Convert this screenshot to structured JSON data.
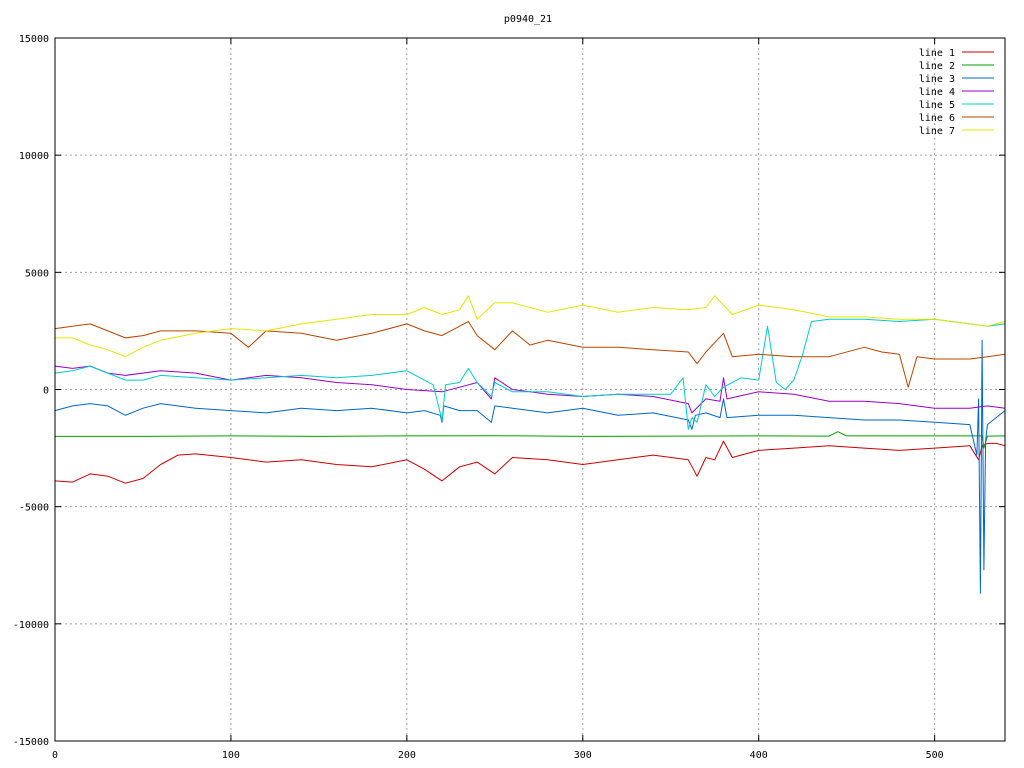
{
  "chart_data": {
    "type": "line",
    "title": "p0940_21",
    "xlabel": "",
    "ylabel": "",
    "xlim": [
      0,
      540
    ],
    "ylim": [
      -15000,
      15000
    ],
    "x_ticks": [
      0,
      100,
      200,
      300,
      400,
      500
    ],
    "y_ticks": [
      -15000,
      -10000,
      -5000,
      0,
      5000,
      10000,
      15000
    ],
    "grid": true,
    "legend_position": "top-right",
    "series": [
      {
        "name": "line 1",
        "color": "#cc0000",
        "x": [
          0,
          10,
          20,
          30,
          40,
          50,
          60,
          70,
          80,
          100,
          120,
          140,
          160,
          180,
          200,
          210,
          220,
          230,
          240,
          250,
          260,
          280,
          300,
          320,
          340,
          360,
          365,
          370,
          375,
          380,
          385,
          400,
          420,
          440,
          460,
          480,
          500,
          520,
          525,
          527,
          530,
          535,
          540
        ],
        "y": [
          -3900,
          -3950,
          -3600,
          -3700,
          -4000,
          -3800,
          -3200,
          -2800,
          -2750,
          -2900,
          -3100,
          -3000,
          -3200,
          -3300,
          -3000,
          -3400,
          -3900,
          -3300,
          -3100,
          -3600,
          -2900,
          -3000,
          -3200,
          -3000,
          -2800,
          -3000,
          -3700,
          -2900,
          -3000,
          -2200,
          -2900,
          -2600,
          -2500,
          -2400,
          -2500,
          -2600,
          -2500,
          -2400,
          -3000,
          -2400,
          -2300,
          -2300,
          -2400
        ]
      },
      {
        "name": "line 2",
        "color": "#00a000",
        "x": [
          0,
          50,
          100,
          150,
          200,
          250,
          300,
          350,
          400,
          440,
          445,
          450,
          500,
          527,
          528,
          530,
          540
        ],
        "y": [
          -2000,
          -2000,
          -1980,
          -2000,
          -1980,
          -1970,
          -2000,
          -1990,
          -1980,
          -1990,
          -1800,
          -1980,
          -1980,
          -1980,
          -2500,
          -1990,
          -1980
        ]
      },
      {
        "name": "line 3",
        "color": "#0066cc",
        "x": [
          0,
          10,
          20,
          30,
          40,
          50,
          60,
          80,
          100,
          120,
          140,
          160,
          180,
          200,
          210,
          219,
          220,
          221,
          230,
          240,
          248,
          250,
          260,
          280,
          300,
          320,
          340,
          360,
          362,
          364,
          370,
          378,
          380,
          382,
          400,
          420,
          440,
          460,
          480,
          500,
          520,
          524,
          525,
          526,
          527,
          528,
          529,
          530,
          535,
          540
        ],
        "y": [
          -900,
          -700,
          -600,
          -700,
          -1100,
          -800,
          -600,
          -800,
          -900,
          -1000,
          -800,
          -900,
          -800,
          -1000,
          -900,
          -1100,
          -1400,
          -700,
          -900,
          -900,
          -1400,
          -700,
          -800,
          -1000,
          -800,
          -1100,
          -1000,
          -1300,
          -1700,
          -1100,
          -1000,
          -1200,
          -400,
          -1200,
          -1100,
          -1100,
          -1200,
          -1300,
          -1300,
          -1400,
          -1500,
          -2800,
          -400,
          -8700,
          2100,
          -7700,
          -2200,
          -1500,
          -1200,
          -900
        ]
      },
      {
        "name": "line 4",
        "color": "#9900cc",
        "x": [
          0,
          10,
          20,
          30,
          40,
          60,
          80,
          100,
          120,
          140,
          160,
          180,
          200,
          220,
          230,
          240,
          248,
          250,
          260,
          270,
          280,
          300,
          320,
          340,
          360,
          362,
          370,
          378,
          380,
          382,
          400,
          420,
          440,
          460,
          480,
          500,
          520,
          530,
          540
        ],
        "y": [
          1000,
          900,
          1000,
          700,
          600,
          800,
          700,
          400,
          600,
          500,
          300,
          200,
          0,
          -100,
          100,
          300,
          -400,
          500,
          0,
          -100,
          -200,
          -300,
          -200,
          -300,
          -600,
          -1000,
          -400,
          -500,
          500,
          -400,
          -100,
          -200,
          -500,
          -500,
          -600,
          -800,
          -800,
          -700,
          -800
        ]
      },
      {
        "name": "line 5",
        "color": "#00cccc",
        "x": [
          0,
          10,
          20,
          30,
          40,
          50,
          60,
          80,
          100,
          120,
          140,
          160,
          180,
          200,
          215,
          220,
          222,
          230,
          235,
          240,
          248,
          250,
          260,
          280,
          300,
          320,
          340,
          350,
          357,
          360,
          362,
          365,
          370,
          375,
          380,
          385,
          390,
          400,
          405,
          410,
          415,
          420,
          425,
          430,
          440,
          460,
          480,
          500,
          520,
          530,
          540
        ],
        "y": [
          700,
          800,
          1000,
          700,
          400,
          400,
          600,
          500,
          400,
          500,
          600,
          500,
          600,
          800,
          200,
          -1300,
          200,
          300,
          900,
          300,
          -300,
          300,
          -100,
          -100,
          -300,
          -200,
          -200,
          -200,
          500,
          -1700,
          -1200,
          -1400,
          200,
          -300,
          100,
          300,
          500,
          400,
          2700,
          300,
          0,
          400,
          1500,
          2900,
          3000,
          3000,
          2900,
          3000,
          2800,
          2700,
          2800
        ]
      },
      {
        "name": "line 6",
        "color": "#bb4400",
        "x": [
          0,
          10,
          20,
          30,
          40,
          50,
          60,
          80,
          100,
          110,
          120,
          140,
          160,
          180,
          200,
          210,
          220,
          230,
          235,
          240,
          250,
          260,
          270,
          280,
          300,
          320,
          340,
          360,
          365,
          370,
          380,
          385,
          400,
          420,
          440,
          460,
          470,
          480,
          485,
          490,
          500,
          520,
          530,
          540
        ],
        "y": [
          2600,
          2700,
          2800,
          2500,
          2200,
          2300,
          2500,
          2500,
          2400,
          1800,
          2500,
          2400,
          2100,
          2400,
          2800,
          2500,
          2300,
          2700,
          2900,
          2300,
          1700,
          2500,
          1900,
          2100,
          1800,
          1800,
          1700,
          1600,
          1100,
          1600,
          2400,
          1400,
          1500,
          1400,
          1400,
          1800,
          1600,
          1500,
          100,
          1400,
          1300,
          1300,
          1400,
          1500
        ]
      },
      {
        "name": "line 7",
        "color": "#e6e600",
        "x": [
          0,
          10,
          20,
          30,
          40,
          50,
          60,
          80,
          100,
          120,
          140,
          160,
          180,
          200,
          210,
          220,
          230,
          235,
          240,
          250,
          260,
          280,
          300,
          320,
          340,
          360,
          370,
          375,
          380,
          385,
          400,
          420,
          440,
          460,
          480,
          500,
          520,
          530,
          540
        ],
        "y": [
          2200,
          2200,
          1900,
          1700,
          1400,
          1800,
          2100,
          2400,
          2600,
          2500,
          2800,
          3000,
          3200,
          3200,
          3500,
          3200,
          3400,
          4000,
          3000,
          3700,
          3700,
          3300,
          3600,
          3300,
          3500,
          3400,
          3500,
          4000,
          3600,
          3200,
          3600,
          3400,
          3100,
          3100,
          3000,
          3000,
          2800,
          2700,
          2900
        ]
      }
    ]
  }
}
